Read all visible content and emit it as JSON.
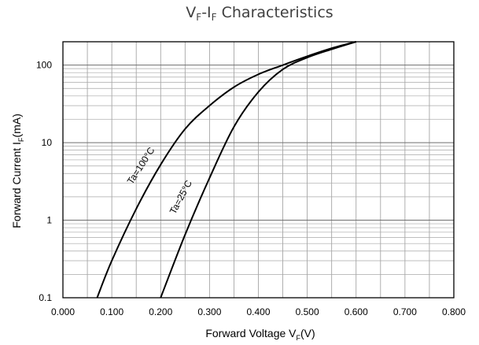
{
  "chart_data": {
    "type": "line",
    "title": {
      "parts": [
        {
          "text": "V",
          "sub": false
        },
        {
          "text": "F",
          "sub": true
        },
        {
          "text": "-I",
          "sub": false
        },
        {
          "text": "F",
          "sub": true
        },
        {
          "text": " Characteristics",
          "sub": false
        }
      ]
    },
    "xlabel": {
      "parts": [
        {
          "text": "Forward Voltage   V",
          "sub": false
        },
        {
          "text": "F",
          "sub": true
        },
        {
          "text": "(V)",
          "sub": false
        }
      ]
    },
    "ylabel": {
      "parts": [
        {
          "text": "Forward Current   I",
          "sub": false
        },
        {
          "text": "F",
          "sub": true
        },
        {
          "text": "(mA)",
          "sub": false
        }
      ]
    },
    "xlim": [
      0,
      0.8
    ],
    "ylim": [
      0.1,
      200
    ],
    "yscale": "log",
    "grid": true,
    "x_ticks": [
      {
        "value": 0.0,
        "label": "0.000"
      },
      {
        "value": 0.1,
        "label": "0.100"
      },
      {
        "value": 0.2,
        "label": "0.200"
      },
      {
        "value": 0.3,
        "label": "0.300"
      },
      {
        "value": 0.4,
        "label": "0.400"
      },
      {
        "value": 0.5,
        "label": "0.500"
      },
      {
        "value": 0.6,
        "label": "0.600"
      },
      {
        "value": 0.7,
        "label": "0.700"
      },
      {
        "value": 0.8,
        "label": "0.800"
      }
    ],
    "y_ticks": [
      {
        "value": 0.1,
        "label": "0.1"
      },
      {
        "value": 1,
        "label": "1"
      },
      {
        "value": 10,
        "label": "10"
      },
      {
        "value": 100,
        "label": "100"
      }
    ],
    "series": [
      {
        "name": "Ta=100°C",
        "color": "#000000",
        "label_at": {
          "x": 0.165,
          "y": 4.8,
          "angle": -57
        },
        "points": [
          {
            "x": 0.07,
            "y": 0.1
          },
          {
            "x": 0.1,
            "y": 0.3
          },
          {
            "x": 0.15,
            "y": 1.4
          },
          {
            "x": 0.2,
            "y": 5.2
          },
          {
            "x": 0.25,
            "y": 15
          },
          {
            "x": 0.3,
            "y": 30
          },
          {
            "x": 0.35,
            "y": 52
          },
          {
            "x": 0.4,
            "y": 76
          },
          {
            "x": 0.45,
            "y": 100
          },
          {
            "x": 0.5,
            "y": 130
          },
          {
            "x": 0.55,
            "y": 165
          },
          {
            "x": 0.6,
            "y": 200
          }
        ]
      },
      {
        "name": "Ta=25°C",
        "color": "#000000",
        "label_at": {
          "x": 0.247,
          "y": 1.9,
          "angle": -62
        },
        "points": [
          {
            "x": 0.2,
            "y": 0.1
          },
          {
            "x": 0.25,
            "y": 0.65
          },
          {
            "x": 0.3,
            "y": 3.5
          },
          {
            "x": 0.35,
            "y": 16
          },
          {
            "x": 0.4,
            "y": 45
          },
          {
            "x": 0.45,
            "y": 88
          },
          {
            "x": 0.5,
            "y": 125
          },
          {
            "x": 0.55,
            "y": 160
          },
          {
            "x": 0.6,
            "y": 200
          }
        ]
      }
    ]
  }
}
